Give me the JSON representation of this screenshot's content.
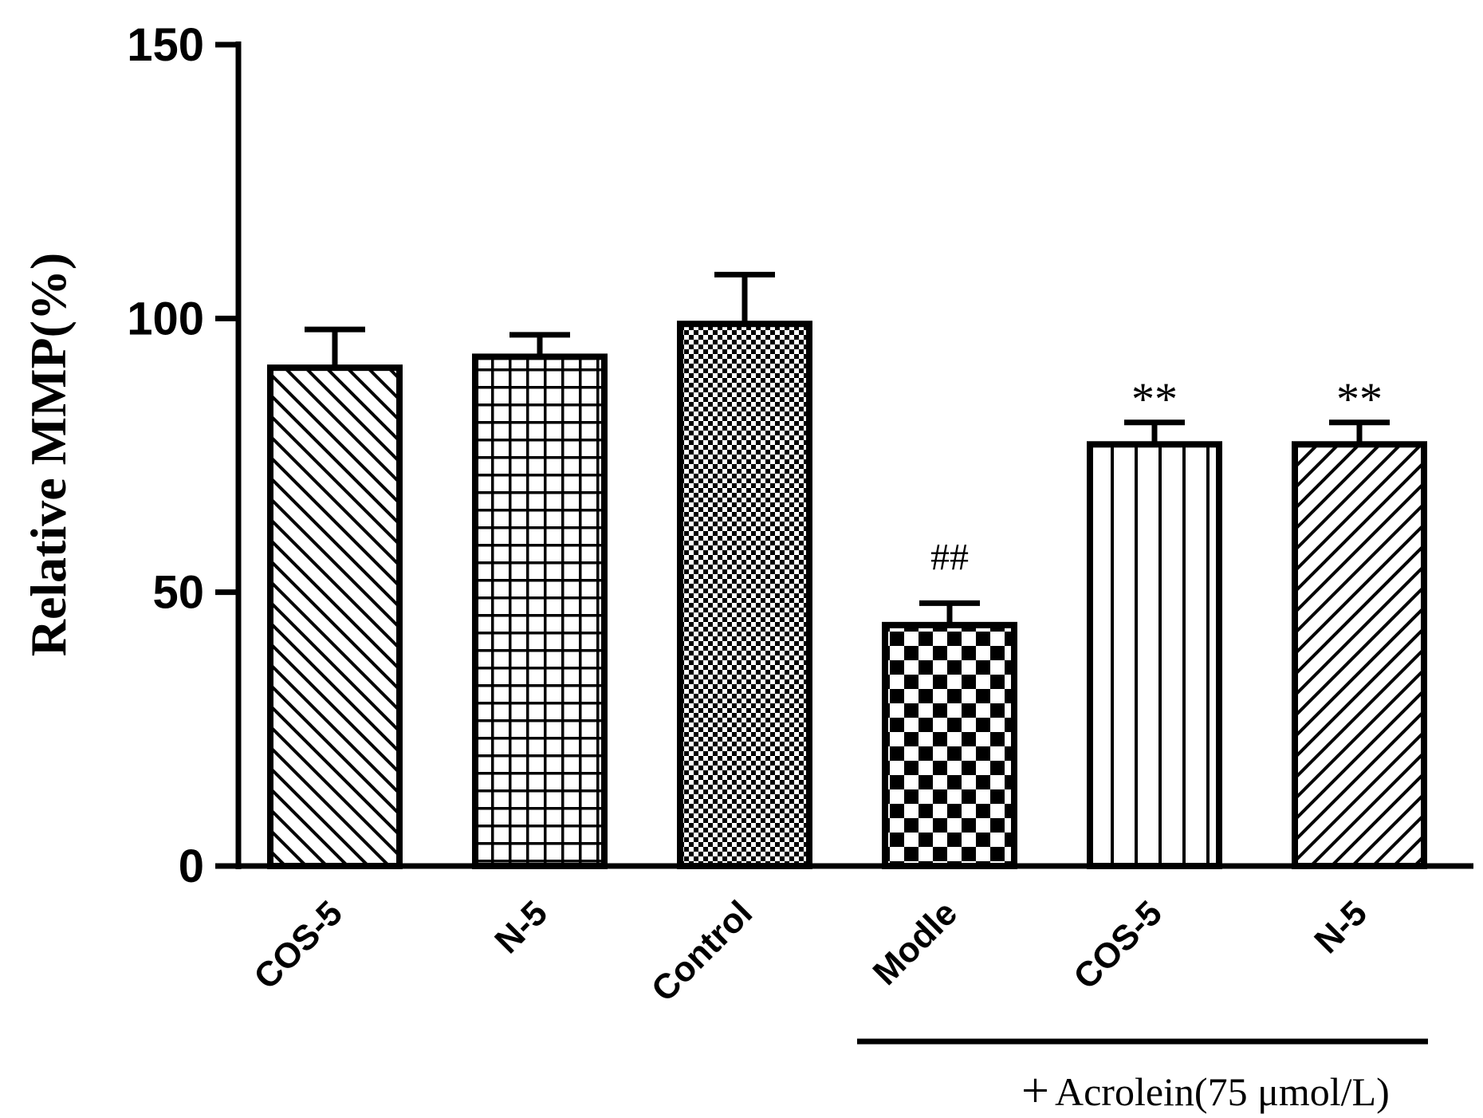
{
  "chart_data": {
    "type": "bar",
    "title": "",
    "xlabel": "",
    "ylabel": "Relative MMP(%)",
    "ylim": [
      0,
      150
    ],
    "yticks": [
      0,
      50,
      100,
      150
    ],
    "categories": [
      "COS-5",
      "N-5",
      "Control",
      "Modle",
      "COS-5",
      "N-5"
    ],
    "values": [
      91,
      93,
      99,
      44,
      77,
      77
    ],
    "errors": [
      7,
      4,
      9,
      4,
      4,
      4
    ],
    "patterns": [
      "diag-back",
      "grid",
      "fine-check",
      "checker",
      "vlines",
      "diag-fwd"
    ],
    "annotations": [
      "",
      "",
      "",
      "##",
      "**",
      "**"
    ],
    "group_bracket": {
      "start_index": 3,
      "end_index": 5,
      "plus": "+",
      "label": "Acrolein(75 μmol/L)"
    }
  }
}
